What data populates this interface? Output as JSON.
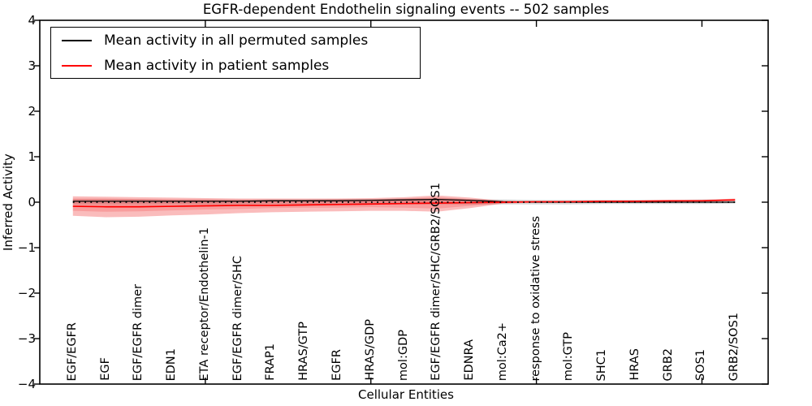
{
  "legend": {
    "entries": [
      {
        "label": "Mean activity in all permuted samples",
        "color": "#000000"
      },
      {
        "label": "Mean activity in patient samples",
        "color": "#ff0000"
      }
    ]
  },
  "chart_data": {
    "type": "line",
    "title": "EGFR-dependent Endothelin signaling events -- 502 samples",
    "xlabel": "Cellular Entities",
    "ylabel": "Inferred Activity",
    "ylim": [
      -4,
      4
    ],
    "yticks": [
      -4,
      -3,
      -2,
      -1,
      0,
      1,
      2,
      3,
      4
    ],
    "ytick_labels": [
      "−4",
      "−3",
      "−2",
      "−1",
      "0",
      "1",
      "2",
      "3",
      "4"
    ],
    "xticks": [
      5,
      10,
      15,
      20
    ],
    "grid": false,
    "legend_position": "upper left",
    "categories": [
      "EGF/EGFR",
      "EGF",
      "EGF/EGFR dimer",
      "EDN1",
      "ETA receptor/Endothelin-1",
      "EGF/EGFR dimer/SHC",
      "FRAP1",
      "HRAS/GTP",
      "EGFR",
      "HRAS/GDP",
      "mol:GDP",
      "EGF/EGFR dimer/SHC/GRB2/SOS1",
      "EDNRA",
      "mol:Ca2+",
      "response to oxidative stress",
      "mol:GTP",
      "SHC1",
      "HRAS",
      "GRB2",
      "SOS1",
      "GRB2/SOS1"
    ],
    "series": [
      {
        "name": "Mean activity in all permuted samples",
        "color": "#000000",
        "style": "solid",
        "width": 1.3,
        "values": [
          0.02,
          0.02,
          0.02,
          0.02,
          0.02,
          0.02,
          0.03,
          0.03,
          0.03,
          0.04,
          0.05,
          0.06,
          0.04,
          0.01,
          0.0,
          0.0,
          0.0,
          0.0,
          0.0,
          0.0,
          0.0
        ]
      },
      {
        "name": "Mean activity in patient samples",
        "color": "#ff0000",
        "style": "solid",
        "width": 1.7,
        "values": [
          -0.09,
          -0.1,
          -0.1,
          -0.09,
          -0.08,
          -0.07,
          -0.07,
          -0.06,
          -0.05,
          -0.04,
          -0.03,
          -0.02,
          -0.01,
          0.0,
          0.01,
          0.01,
          0.02,
          0.02,
          0.03,
          0.03,
          0.05
        ]
      },
      {
        "name": "zero reference",
        "color": "#000000",
        "style": "dotted",
        "width": 1.8,
        "values": [
          0,
          0,
          0,
          0,
          0,
          0,
          0,
          0,
          0,
          0,
          0,
          0,
          0,
          0,
          0,
          0,
          0,
          0,
          0,
          0,
          0
        ]
      }
    ],
    "bands": [
      {
        "name": "permuted std band",
        "color": "#999999",
        "opacity": 0.38,
        "top": [
          0.07,
          0.07,
          0.07,
          0.06,
          0.06,
          0.06,
          0.06,
          0.06,
          0.07,
          0.07,
          0.08,
          0.09,
          0.07,
          0.06,
          0.05,
          0.05,
          0.05,
          0.05,
          0.05,
          0.06,
          0.06
        ],
        "bottom": [
          -0.05,
          -0.05,
          -0.05,
          -0.05,
          -0.05,
          -0.05,
          -0.04,
          -0.04,
          -0.04,
          -0.04,
          -0.04,
          -0.05,
          -0.05,
          -0.05,
          -0.05,
          -0.05,
          -0.04,
          -0.04,
          -0.04,
          -0.04,
          -0.03
        ]
      },
      {
        "name": "patient outer band",
        "color": "#f03030",
        "opacity": 0.32,
        "top": [
          0.13,
          0.12,
          0.11,
          0.1,
          0.09,
          0.08,
          0.08,
          0.08,
          0.08,
          0.09,
          0.11,
          0.15,
          0.1,
          0.03,
          0.02,
          0.03,
          0.03,
          0.04,
          0.04,
          0.05,
          0.08
        ],
        "bottom": [
          -0.3,
          -0.33,
          -0.32,
          -0.29,
          -0.27,
          -0.24,
          -0.22,
          -0.21,
          -0.2,
          -0.19,
          -0.19,
          -0.21,
          -0.13,
          -0.03,
          -0.01,
          0.0,
          0.0,
          0.01,
          0.01,
          0.02,
          0.03
        ]
      },
      {
        "name": "patient inner band",
        "color": "#f03030",
        "opacity": 0.22,
        "top": [
          0.08,
          0.08,
          0.07,
          0.06,
          0.06,
          0.05,
          0.05,
          0.05,
          0.06,
          0.06,
          0.08,
          0.11,
          0.07,
          0.02,
          0.01,
          0.02,
          0.02,
          0.03,
          0.03,
          0.04,
          0.06
        ],
        "bottom": [
          -0.19,
          -0.21,
          -0.2,
          -0.18,
          -0.16,
          -0.15,
          -0.13,
          -0.12,
          -0.12,
          -0.11,
          -0.12,
          -0.14,
          -0.08,
          -0.02,
          0.0,
          0.0,
          0.01,
          0.01,
          0.02,
          0.02,
          0.03
        ]
      }
    ]
  }
}
